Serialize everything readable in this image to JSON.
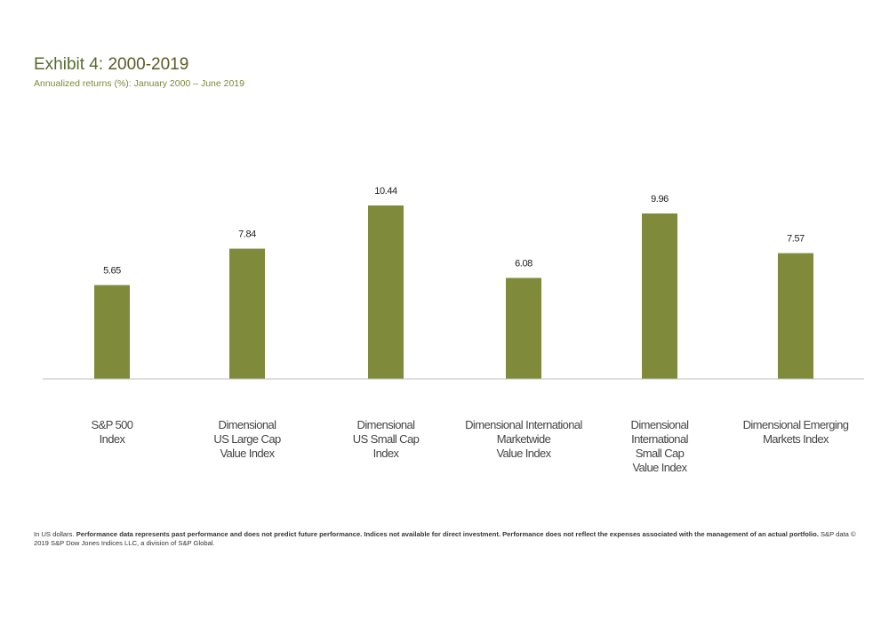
{
  "header": {
    "title_prefix": "Exhibit 4:",
    "title_years": "2000-2019",
    "subtitle": "Annualized returns (%): January 2000 – June 2019"
  },
  "colors": {
    "bar": "#7f8b3a",
    "baseline": "#bfbfbf"
  },
  "chart_data": {
    "type": "bar",
    "title": "Exhibit 4: 2000-2019",
    "subtitle": "Annualized returns (%): January 2000 – June 2019",
    "categories": [
      "S&P 500 Index",
      "Dimensional US Large Cap Value Index",
      "Dimensional US Small Cap Index",
      "Dimensional International Marketwide Value Index",
      "Dimensional International Small Cap Value Index",
      "Dimensional Emerging Markets Index"
    ],
    "category_label_lines": [
      [
        "S&P 500",
        "Index"
      ],
      [
        "Dimensional",
        "US Large Cap",
        "Value Index"
      ],
      [
        "Dimensional",
        "US Small Cap",
        "Index"
      ],
      [
        "Dimensional  International",
        "Marketwide",
        "Value Index"
      ],
      [
        "Dimensional",
        "International",
        "Small Cap",
        "Value Index"
      ],
      [
        "Dimensional Emerging",
        "Markets Index"
      ]
    ],
    "values": [
      5.65,
      7.84,
      10.44,
      6.08,
      9.96,
      7.57
    ],
    "value_labels": [
      "5.65",
      "7.84",
      "10.44",
      "6.08",
      "9.96",
      "7.57"
    ],
    "ylim": [
      0,
      10.44
    ],
    "grid": false,
    "legend": "none"
  },
  "footnote": {
    "lead": "In US dollars.",
    "bold": "Performance data represents past performance and does not predict future performance. Indices not available for direct investment. Performance  does not reflect the expenses associated with the management of an actual portfolio.",
    "tail": "S&P data © 2019 S&P Dow Jones Indices LLC, a division of S&P Global."
  }
}
